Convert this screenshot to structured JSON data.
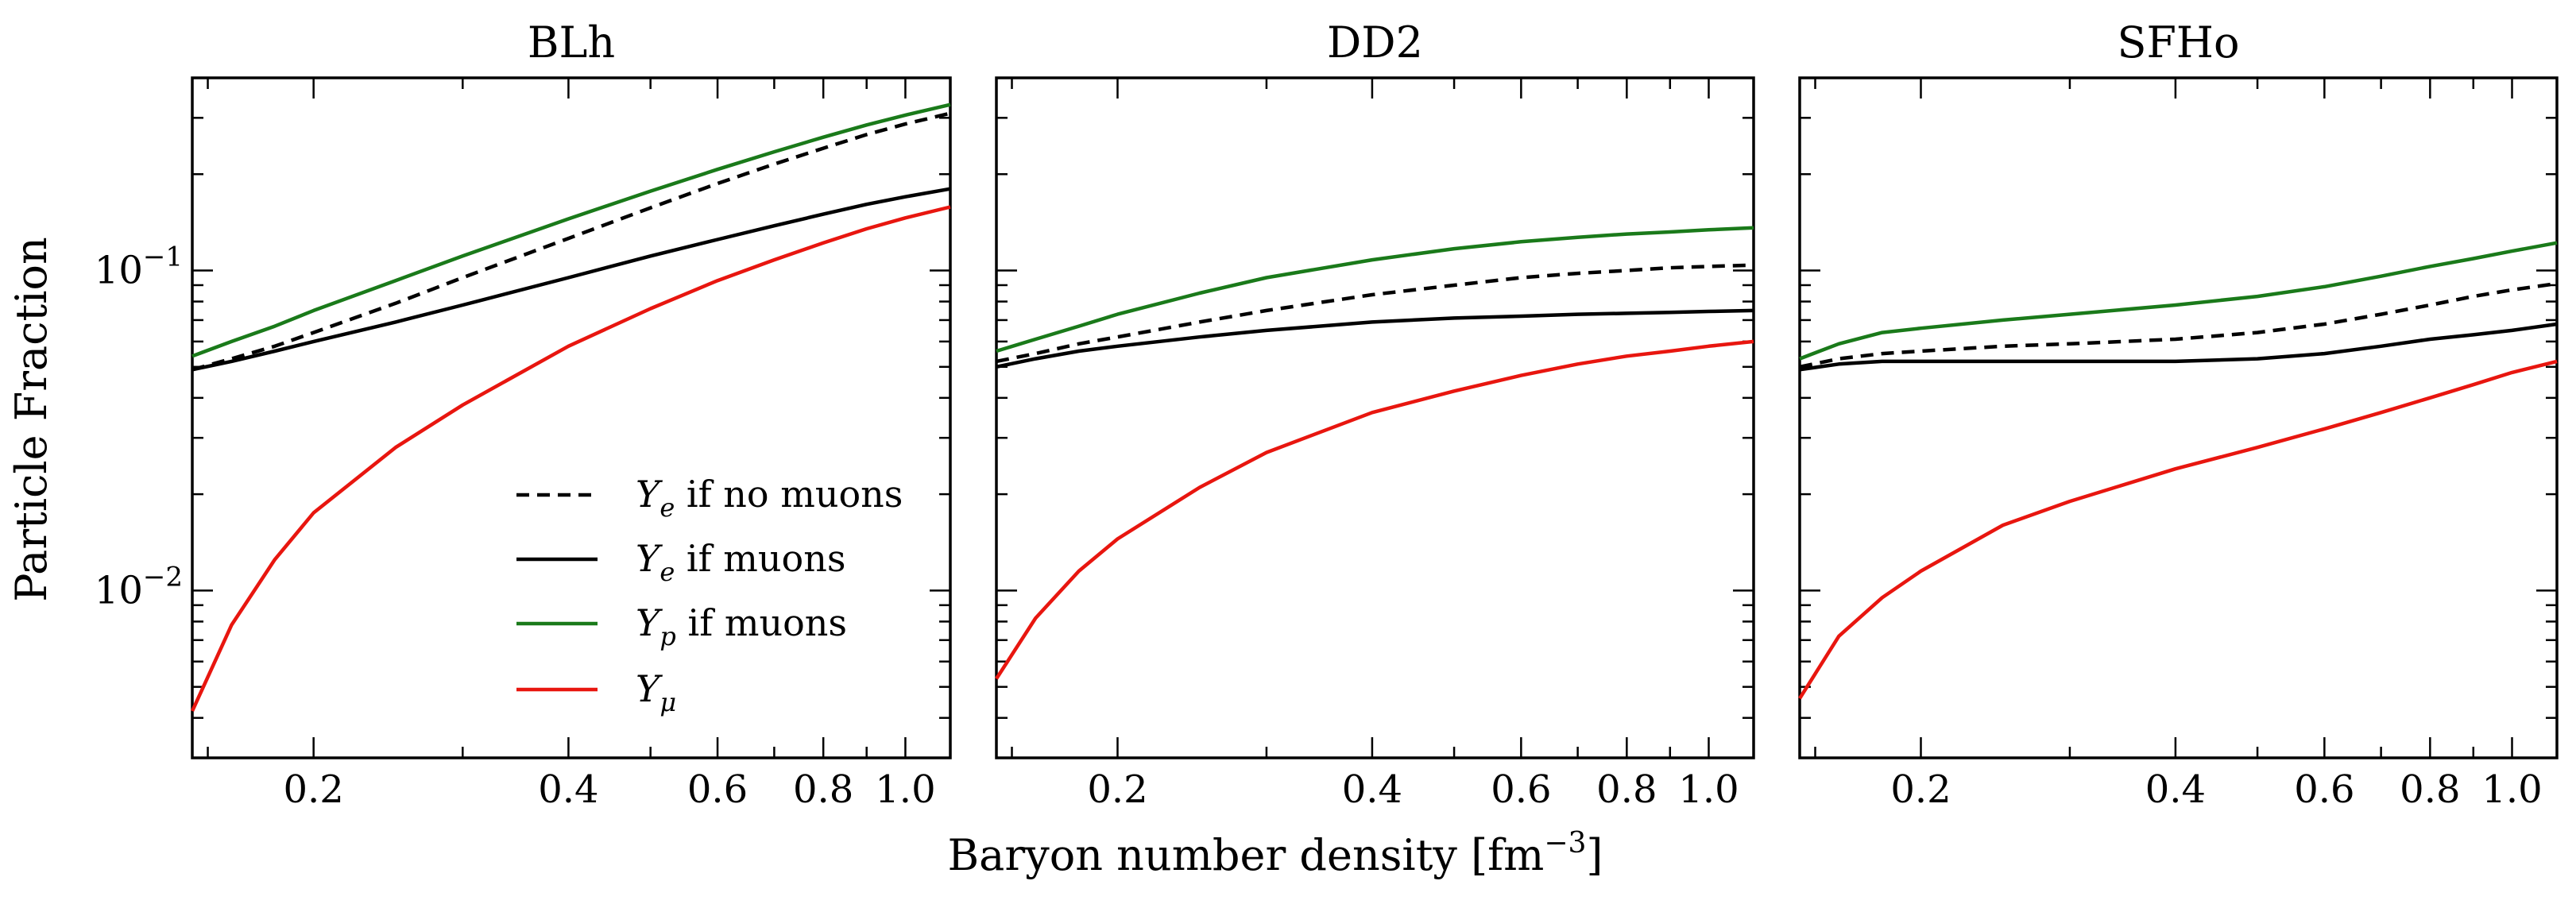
{
  "figure": {
    "ylabel": "Particle Fraction",
    "xlabel": "Baryon number density [fm",
    "xlabel_exp": "−3",
    "xlabel_close": "]",
    "ytick_base": "10",
    "yticks": [
      {
        "value": 0.1,
        "exp": "−1"
      },
      {
        "value": 0.01,
        "exp": "−2"
      }
    ],
    "xticks": [
      {
        "value": 0.2,
        "label": "0.2"
      },
      {
        "value": 0.4,
        "label": "0.4"
      },
      {
        "value": 0.6,
        "label": "0.6"
      },
      {
        "value": 0.8,
        "label": "0.8"
      },
      {
        "value": 1.0,
        "label": "1.0"
      }
    ]
  },
  "legend": [
    {
      "symbol": "Y",
      "sub": "e",
      "label": " if no muons",
      "color": "#000000",
      "dash": true
    },
    {
      "symbol": "Y",
      "sub": "e",
      "label": " if muons",
      "color": "#000000",
      "dash": false
    },
    {
      "symbol": "Y",
      "sub": "p",
      "label": " if muons",
      "color": "#1a7a1a",
      "dash": false
    },
    {
      "symbol": "Y",
      "sub": "μ",
      "label": "",
      "color": "#e8160f",
      "dash": false
    }
  ],
  "chart_data": [
    {
      "type": "line",
      "title": "BLh",
      "xscale": "log",
      "yscale": "log",
      "xlim": [
        0.1438,
        1.13
      ],
      "ylim": [
        0.003,
        0.4
      ],
      "x": [
        0.1438,
        0.16,
        0.18,
        0.2,
        0.25,
        0.3,
        0.4,
        0.5,
        0.6,
        0.7,
        0.8,
        0.9,
        1.0,
        1.13
      ],
      "series": [
        {
          "name": "Ye if no muons",
          "color": "#000000",
          "dash": true,
          "values": [
            0.049,
            0.053,
            0.058,
            0.064,
            0.079,
            0.095,
            0.126,
            0.157,
            0.187,
            0.215,
            0.241,
            0.266,
            0.287,
            0.31
          ]
        },
        {
          "name": "Ye if muons",
          "color": "#000000",
          "dash": false,
          "values": [
            0.049,
            0.052,
            0.056,
            0.06,
            0.069,
            0.078,
            0.095,
            0.111,
            0.125,
            0.138,
            0.15,
            0.161,
            0.17,
            0.18
          ]
        },
        {
          "name": "Yp if muons",
          "color": "#1a7a1a",
          "dash": false,
          "values": [
            0.054,
            0.06,
            0.067,
            0.075,
            0.093,
            0.111,
            0.145,
            0.177,
            0.207,
            0.235,
            0.261,
            0.285,
            0.306,
            0.33
          ]
        },
        {
          "name": "Yμ",
          "color": "#e8160f",
          "dash": false,
          "values": [
            0.0042,
            0.0078,
            0.0125,
            0.0175,
            0.028,
            0.038,
            0.058,
            0.076,
            0.093,
            0.108,
            0.122,
            0.135,
            0.146,
            0.158
          ]
        }
      ]
    },
    {
      "type": "line",
      "title": "DD2",
      "xscale": "log",
      "yscale": "log",
      "xlim": [
        0.1438,
        1.13
      ],
      "ylim": [
        0.003,
        0.4
      ],
      "x": [
        0.1438,
        0.16,
        0.18,
        0.2,
        0.25,
        0.3,
        0.4,
        0.5,
        0.6,
        0.7,
        0.8,
        0.9,
        1.0,
        1.13
      ],
      "series": [
        {
          "name": "Ye if no muons",
          "color": "#000000",
          "dash": true,
          "values": [
            0.052,
            0.055,
            0.059,
            0.062,
            0.069,
            0.075,
            0.084,
            0.09,
            0.095,
            0.098,
            0.1,
            0.102,
            0.103,
            0.104
          ]
        },
        {
          "name": "Ye if muons",
          "color": "#000000",
          "dash": false,
          "values": [
            0.05,
            0.053,
            0.056,
            0.058,
            0.062,
            0.065,
            0.069,
            0.071,
            0.072,
            0.073,
            0.0735,
            0.074,
            0.0745,
            0.075
          ]
        },
        {
          "name": "Yp if muons",
          "color": "#1a7a1a",
          "dash": false,
          "values": [
            0.056,
            0.061,
            0.067,
            0.073,
            0.085,
            0.095,
            0.108,
            0.117,
            0.123,
            0.127,
            0.13,
            0.132,
            0.134,
            0.136
          ]
        },
        {
          "name": "Yμ",
          "color": "#e8160f",
          "dash": false,
          "values": [
            0.0053,
            0.0082,
            0.0115,
            0.0145,
            0.021,
            0.027,
            0.036,
            0.042,
            0.047,
            0.051,
            0.054,
            0.056,
            0.058,
            0.06
          ]
        }
      ]
    },
    {
      "type": "line",
      "title": "SFHo",
      "xscale": "log",
      "yscale": "log",
      "xlim": [
        0.1438,
        1.13
      ],
      "ylim": [
        0.003,
        0.4
      ],
      "x": [
        0.1438,
        0.16,
        0.18,
        0.2,
        0.25,
        0.3,
        0.4,
        0.5,
        0.6,
        0.7,
        0.8,
        0.9,
        1.0,
        1.13
      ],
      "series": [
        {
          "name": "Ye if no muons",
          "color": "#000000",
          "dash": true,
          "values": [
            0.05,
            0.053,
            0.055,
            0.056,
            0.058,
            0.059,
            0.061,
            0.064,
            0.068,
            0.073,
            0.078,
            0.083,
            0.087,
            0.091
          ]
        },
        {
          "name": "Ye if muons",
          "color": "#000000",
          "dash": false,
          "values": [
            0.049,
            0.051,
            0.052,
            0.052,
            0.052,
            0.052,
            0.052,
            0.053,
            0.055,
            0.058,
            0.061,
            0.063,
            0.065,
            0.068
          ]
        },
        {
          "name": "Yp if muons",
          "color": "#1a7a1a",
          "dash": false,
          "values": [
            0.053,
            0.059,
            0.064,
            0.066,
            0.07,
            0.073,
            0.078,
            0.083,
            0.089,
            0.096,
            0.103,
            0.109,
            0.115,
            0.122
          ]
        },
        {
          "name": "Yμ",
          "color": "#e8160f",
          "dash": false,
          "values": [
            0.0046,
            0.0072,
            0.0095,
            0.0115,
            0.016,
            0.019,
            0.024,
            0.028,
            0.032,
            0.036,
            0.04,
            0.044,
            0.048,
            0.052
          ]
        }
      ]
    }
  ]
}
